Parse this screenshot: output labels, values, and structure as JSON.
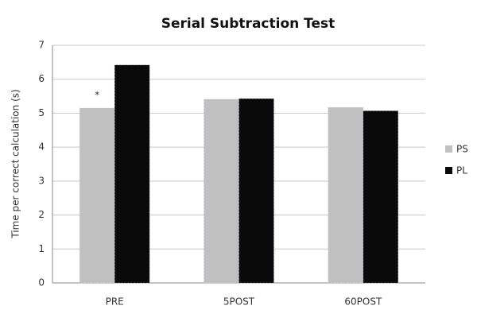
{
  "chart_data": {
    "type": "bar",
    "title": "Serial Subtraction Test",
    "y_label": "Time per correct calculation (s)",
    "categories": [
      "PRE",
      "5POST",
      "60POST"
    ],
    "series": [
      {
        "name": "PS",
        "color": "#c0c0c0",
        "values": [
          5.15,
          5.41,
          5.17
        ]
      },
      {
        "name": "PL",
        "color": "#0a0a0a",
        "values": [
          6.42,
          5.43,
          5.07
        ]
      }
    ],
    "annotation": "*",
    "ylim": [
      0,
      7
    ],
    "yticks": [
      0,
      1,
      2,
      3,
      4,
      5,
      6,
      7
    ],
    "grid": true,
    "legend": "right"
  }
}
